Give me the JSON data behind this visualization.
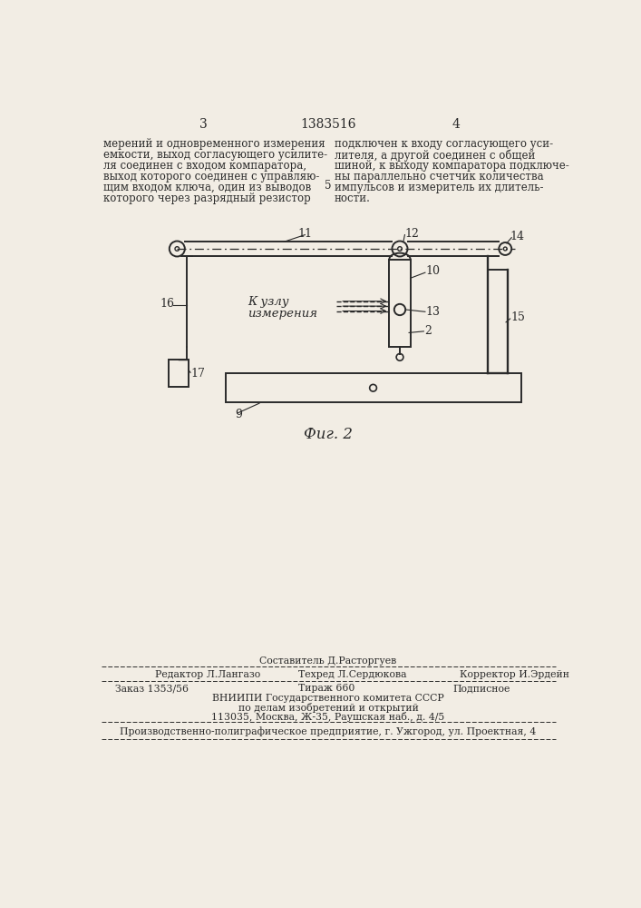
{
  "bg_color": "#f2ede4",
  "page_number_left": "3",
  "page_number_center": "1383516",
  "page_number_right": "4",
  "col_num_5": "5",
  "text_left": "мерений и одновременного измерения\nемкости, выход согласующего усилите-\nля соединен с входом компаратора,\nвыход которого соединен с управляю-\nщим входом ключа, один из выводов\nкоторого через разрядный резистор",
  "text_right": "подключен к входу согласующего уси-\nлителя, а другой соединен с общей\nшиной, к выходу компаратора подключе-\nны параллельно счетчик количества\nимпульсов и измеритель их длитель-\nности.",
  "fig_caption": "Фиг. 2",
  "footer_line1_left": "Редактор Л.Лангазо",
  "footer_line1_center_top": "Составитель Д.Расторгуев",
  "footer_line1_center": "Техред Л.Сердюкова",
  "footer_line1_right": "Корректор И.Эрдейн",
  "footer_line2_left": "Заказ 1353/56",
  "footer_line2_center": "Тираж 660",
  "footer_line2_right": "Подписное",
  "footer_line3": "ВНИИПИ Государственного комитета СССР",
  "footer_line4": "по делам изобретений и открытий",
  "footer_line5": "113035, Москва, Ж-35, Раушская наб., д. 4/5",
  "footer_last": "Производственно-полиграфическое предприятие, г. Ужгород, ул. Проектная, 4"
}
